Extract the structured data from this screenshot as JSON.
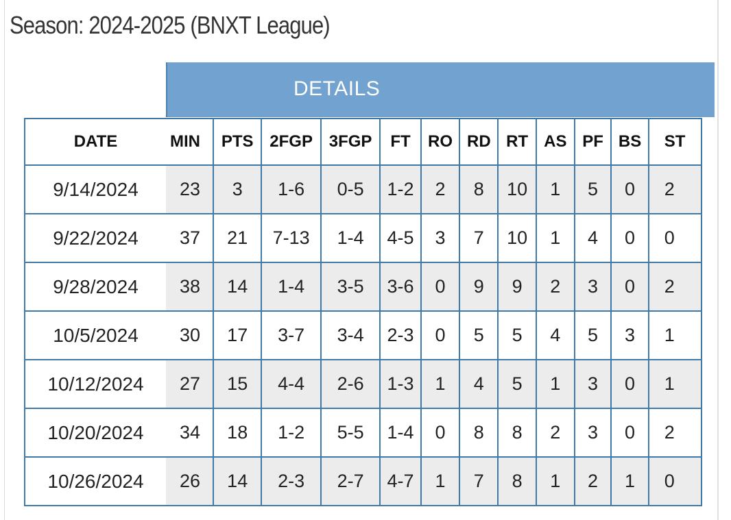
{
  "title": "Season: 2024-2025 (BNXT League)",
  "section_header": "DETAILS",
  "colors": {
    "header_bar": "#72a2cf",
    "border": "#3f79a8",
    "stripe": "#ececec"
  },
  "table": {
    "date_header": "DATE",
    "stat_headers": [
      "MIN",
      "PTS",
      "2FGP",
      "3FGP",
      "FT",
      "RO",
      "RD",
      "RT",
      "AS",
      "PF",
      "BS",
      "ST"
    ],
    "rows": [
      {
        "date": "9/14/2024",
        "stats": [
          "23",
          "3",
          "1-6",
          "0-5",
          "1-2",
          "2",
          "8",
          "10",
          "1",
          "5",
          "0",
          "2"
        ]
      },
      {
        "date": "9/22/2024",
        "stats": [
          "37",
          "21",
          "7-13",
          "1-4",
          "4-5",
          "3",
          "7",
          "10",
          "1",
          "4",
          "0",
          "0"
        ]
      },
      {
        "date": "9/28/2024",
        "stats": [
          "38",
          "14",
          "1-4",
          "3-5",
          "3-6",
          "0",
          "9",
          "9",
          "2",
          "3",
          "0",
          "2"
        ]
      },
      {
        "date": "10/5/2024",
        "stats": [
          "30",
          "17",
          "3-7",
          "3-4",
          "2-3",
          "0",
          "5",
          "5",
          "4",
          "5",
          "3",
          "1"
        ]
      },
      {
        "date": "10/12/2024",
        "stats": [
          "27",
          "15",
          "4-4",
          "2-6",
          "1-3",
          "1",
          "4",
          "5",
          "1",
          "3",
          "0",
          "1"
        ]
      },
      {
        "date": "10/20/2024",
        "stats": [
          "34",
          "18",
          "1-2",
          "5-5",
          "1-4",
          "0",
          "8",
          "8",
          "2",
          "3",
          "0",
          "2"
        ]
      },
      {
        "date": "10/26/2024",
        "stats": [
          "26",
          "14",
          "2-3",
          "2-7",
          "4-7",
          "1",
          "7",
          "8",
          "1",
          "2",
          "1",
          "0"
        ]
      }
    ]
  }
}
